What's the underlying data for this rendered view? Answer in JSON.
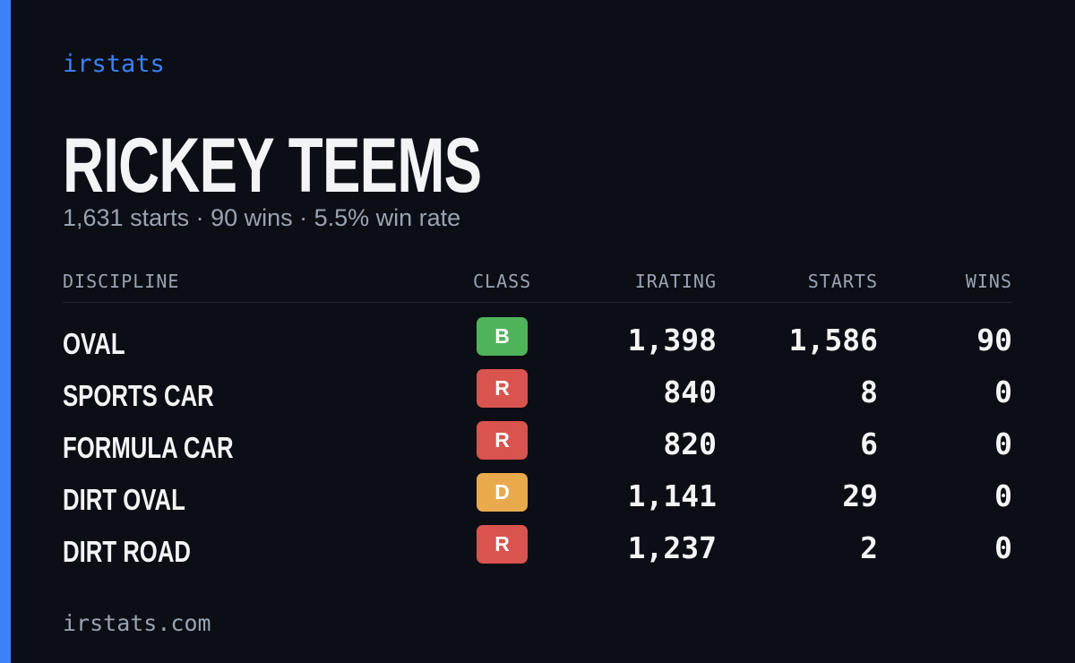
{
  "brand": "irstats",
  "driver": {
    "name": "RICKEY TEEMS",
    "summary": "1,631 starts · 90 wins · 5.5% win rate"
  },
  "table": {
    "headers": [
      "DISCIPLINE",
      "CLASS",
      "IRATING",
      "STARTS",
      "WINS"
    ],
    "rows": [
      {
        "discipline": "OVAL",
        "class": "B",
        "class_color": "#4fb35a",
        "irating": "1,398",
        "starts": "1,586",
        "wins": "90"
      },
      {
        "discipline": "SPORTS CAR",
        "class": "R",
        "class_color": "#d9534f",
        "irating": "840",
        "starts": "8",
        "wins": "0"
      },
      {
        "discipline": "FORMULA CAR",
        "class": "R",
        "class_color": "#d9534f",
        "irating": "820",
        "starts": "6",
        "wins": "0"
      },
      {
        "discipline": "DIRT OVAL",
        "class": "D",
        "class_color": "#e8aa4c",
        "irating": "1,141",
        "starts": "29",
        "wins": "0"
      },
      {
        "discipline": "DIRT ROAD",
        "class": "R",
        "class_color": "#d9534f",
        "irating": "1,237",
        "starts": "2",
        "wins": "0"
      }
    ]
  },
  "footer": "irstats.com"
}
